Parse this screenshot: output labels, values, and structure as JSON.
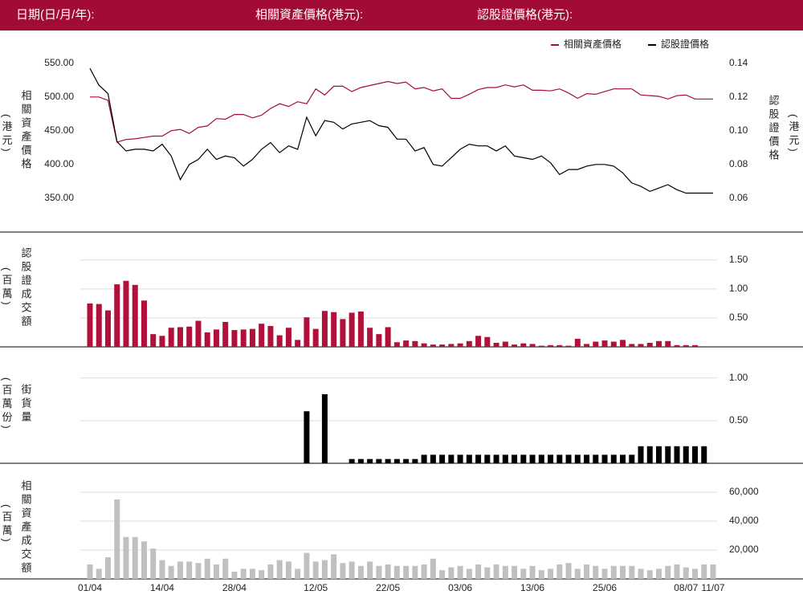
{
  "header": {
    "date_label": "日期(日/月/年):",
    "asset_label": "相關資產價格(港元):",
    "warrant_label": "認股證價格(港元):"
  },
  "chart_data": [
    {
      "type": "line",
      "legend": "upper right",
      "y_label": "相關資產價格",
      "y_label_unit": "(港元)",
      "y2_label": "認股證價格",
      "y2_label_unit": "(港元)",
      "ylim": [
        320,
        570
      ],
      "yticks": [
        {
          "value": 350,
          "label": "350.00"
        },
        {
          "value": 400,
          "label": "400.00"
        },
        {
          "value": 450,
          "label": "450.00"
        },
        {
          "value": 500,
          "label": "500.00"
        },
        {
          "value": 550,
          "label": "550.00"
        }
      ],
      "y2lim": [
        0.048,
        0.148
      ],
      "y2ticks": [
        0.06,
        0.08,
        {
          "value": 0.1,
          "label": "0.10"
        },
        0.12,
        0.14
      ],
      "series": [
        {
          "name": "相關資產價格",
          "color": "#a50d33",
          "values": [
            500,
            500,
            495,
            433,
            437,
            438,
            440,
            442,
            442,
            450,
            452,
            446,
            455,
            457,
            468,
            467,
            474,
            474,
            469,
            473,
            483,
            490,
            486,
            493,
            490,
            512,
            503,
            516,
            516,
            508,
            514,
            517,
            520,
            523,
            520,
            522,
            512,
            514,
            509,
            512,
            498,
            498,
            504,
            511,
            514,
            514,
            518,
            515,
            518,
            510,
            510,
            509,
            512,
            506,
            498,
            505,
            504,
            508,
            512,
            512,
            512,
            503,
            502,
            501,
            497,
            502,
            503,
            497,
            497,
            497
          ]
        },
        {
          "name": "認股證價格",
          "color": "#000000",
          "axis": "y2",
          "values": [
            0.137,
            0.127,
            0.122,
            0.0935,
            0.088,
            0.089,
            0.089,
            0.088,
            0.092,
            0.085,
            0.071,
            0.08,
            0.083,
            0.089,
            0.083,
            0.085,
            0.084,
            0.079,
            0.083,
            0.089,
            0.093,
            0.087,
            0.091,
            0.089,
            0.108,
            0.097,
            0.106,
            0.105,
            0.101,
            0.104,
            0.105,
            0.106,
            0.103,
            0.102,
            0.095,
            0.095,
            0.088,
            0.09,
            0.08,
            0.079,
            0.084,
            0.089,
            0.092,
            0.091,
            0.091,
            0.088,
            0.091,
            0.085,
            0.084,
            0.083,
            0.085,
            0.081,
            0.074,
            0.077,
            0.077,
            0.079,
            0.08,
            0.08,
            0.079,
            0.075,
            0.069,
            0.067,
            0.064,
            0.066,
            0.068,
            0.065,
            0.063,
            0.063,
            0.063,
            0.063
          ]
        }
      ]
    },
    {
      "type": "bar",
      "grid": true,
      "color": "#b0103a",
      "y_label": "認股證成交額",
      "y_label_unit": "(百萬)",
      "ylim": [
        0,
        1.83
      ],
      "yticks": [
        {
          "value": 0.5,
          "label": "0.50"
        },
        {
          "value": 1,
          "label": "1.00"
        },
        {
          "value": 1.5,
          "label": "1.50"
        }
      ],
      "values": [
        0.75,
        0.74,
        0.63,
        1.08,
        1.14,
        1.07,
        0.8,
        0.22,
        0.19,
        0.33,
        0.34,
        0.35,
        0.45,
        0.25,
        0.3,
        0.43,
        0.29,
        0.3,
        0.31,
        0.4,
        0.36,
        0.2,
        0.33,
        0.12,
        0.51,
        0.31,
        0.62,
        0.6,
        0.48,
        0.59,
        0.61,
        0.33,
        0.22,
        0.34,
        0.08,
        0.11,
        0.1,
        0.06,
        0.04,
        0.04,
        0.05,
        0.06,
        0.1,
        0.19,
        0.17,
        0.07,
        0.09,
        0.04,
        0.06,
        0.05,
        0.02,
        0.03,
        0.03,
        0.02,
        0.14,
        0.05,
        0.09,
        0.11,
        0.09,
        0.12,
        0.05,
        0.05,
        0.07,
        0.1,
        0.1,
        0.03,
        0.03,
        0.03,
        0.01,
        0
      ]
    },
    {
      "type": "bar",
      "grid": true,
      "color": "#000000",
      "y_label": "街貨量",
      "y_label_unit": "(百萬份)",
      "ylim": [
        0,
        1.29
      ],
      "yticks": [
        {
          "value": 0.5,
          "label": "0.50"
        },
        {
          "value": 1,
          "label": "1.00"
        }
      ],
      "values": [
        0,
        0,
        0,
        0,
        0,
        0,
        0,
        0,
        0,
        0,
        0,
        0,
        0,
        0,
        0,
        0,
        0,
        0,
        0,
        0,
        0,
        0,
        0,
        0,
        0.61,
        0,
        0.81,
        0,
        0,
        0.05,
        0.05,
        0.05,
        0.05,
        0.05,
        0.05,
        0.05,
        0.05,
        0.1,
        0.1,
        0.1,
        0.1,
        0.1,
        0.1,
        0.1,
        0.1,
        0.1,
        0.1,
        0.1,
        0.1,
        0.1,
        0.1,
        0.1,
        0.1,
        0.1,
        0.1,
        0.1,
        0.1,
        0.1,
        0.1,
        0.1,
        0.1,
        0.2,
        0.2,
        0.2,
        0.2,
        0.2,
        0.2,
        0.2,
        0.2,
        0
      ]
    },
    {
      "type": "bar",
      "grid": true,
      "color": "#c0c0c0",
      "y_label": "相關資產成交額",
      "y_label_unit": "(百萬)",
      "ylim": [
        0,
        72800
      ],
      "yticks": [
        {
          "value": 20000,
          "label": "20,000"
        },
        {
          "value": 40000,
          "label": "40,000"
        },
        {
          "value": 60000,
          "label": "60,000"
        }
      ],
      "values": [
        10000,
        7000,
        15000,
        55000,
        29000,
        29000,
        26000,
        21000,
        13000,
        9000,
        12000,
        12000,
        11000,
        14000,
        10000,
        14000,
        5000,
        7000,
        7000,
        6000,
        10000,
        13000,
        12000,
        7000,
        18000,
        12000,
        13000,
        17000,
        11000,
        12000,
        9000,
        12000,
        9000,
        10000,
        9000,
        9000,
        9000,
        10000,
        14000,
        6000,
        8000,
        9000,
        7000,
        10000,
        8000,
        10000,
        9000,
        9000,
        7000,
        9000,
        6000,
        7000,
        10000,
        11000,
        7000,
        10000,
        9000,
        7000,
        9000,
        9000,
        9000,
        7000,
        6000,
        7000,
        9000,
        10000,
        8000,
        7000,
        10000,
        10000
      ],
      "categories": [
        "01/04",
        null,
        null,
        null,
        null,
        null,
        null,
        null,
        "14/04",
        null,
        null,
        null,
        null,
        null,
        null,
        null,
        "28/04",
        null,
        null,
        null,
        null,
        null,
        null,
        null,
        null,
        "12/05",
        null,
        null,
        null,
        null,
        null,
        null,
        null,
        "22/05",
        null,
        null,
        null,
        null,
        null,
        null,
        null,
        "03/06",
        null,
        null,
        null,
        null,
        null,
        null,
        null,
        "13/06",
        null,
        null,
        null,
        null,
        null,
        null,
        null,
        "25/06",
        null,
        null,
        null,
        null,
        null,
        null,
        null,
        null,
        "08/07",
        null,
        null,
        "11/07"
      ]
    }
  ]
}
